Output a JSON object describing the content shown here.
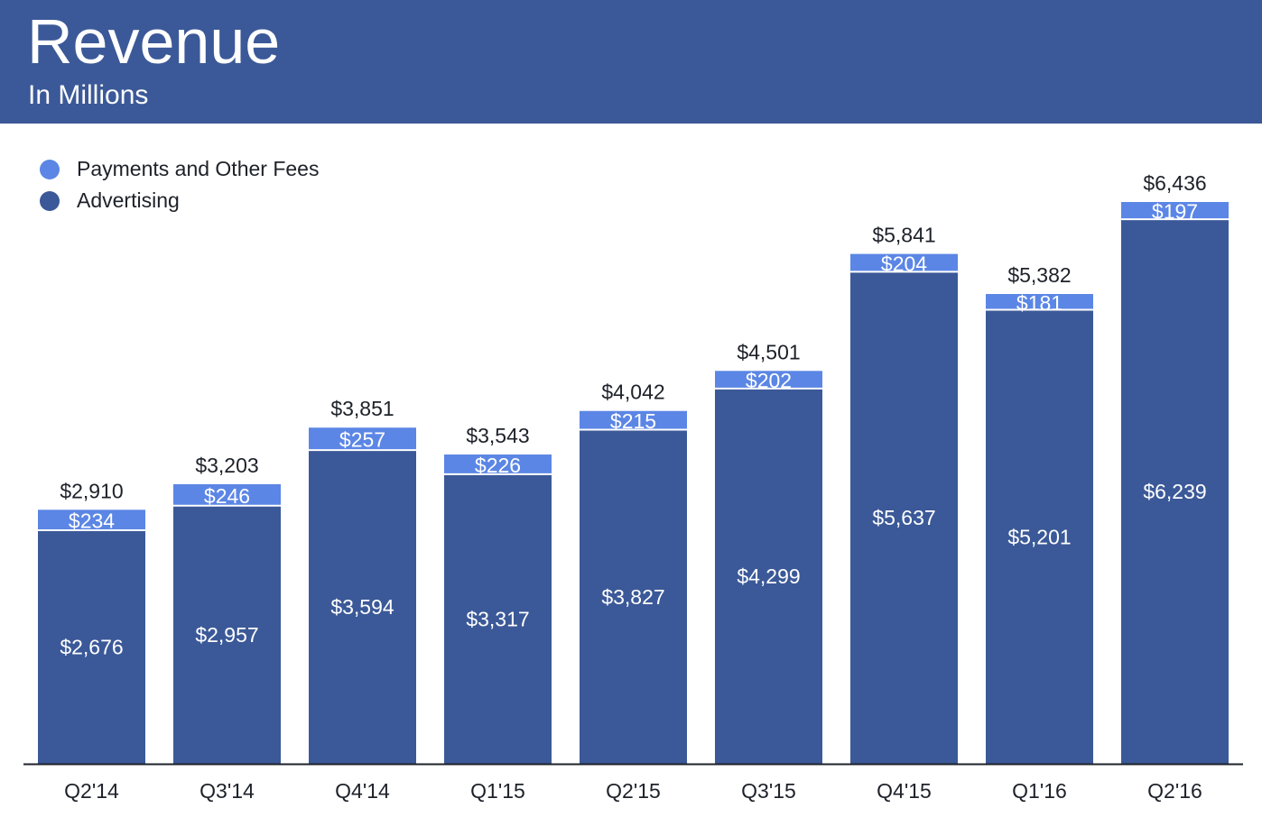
{
  "header": {
    "title": "Revenue",
    "subtitle": "In Millions",
    "background": "#3b5998"
  },
  "legend": [
    {
      "label": "Payments and Other Fees",
      "color": "#5b86e5"
    },
    {
      "label": "Advertising",
      "color": "#3b5998"
    }
  ],
  "chart_data": {
    "type": "bar",
    "stacked": true,
    "categories": [
      "Q2'14",
      "Q3'14",
      "Q4'14",
      "Q1'15",
      "Q2'15",
      "Q3'15",
      "Q4'15",
      "Q1'16",
      "Q2'16"
    ],
    "series": [
      {
        "name": "Advertising",
        "color": "#3b5998",
        "labels": [
          "$2,676",
          "$2,957",
          "$3,594",
          "$3,317",
          "$3,827",
          "$4,299",
          "$5,637",
          "$5,201",
          "$6,239"
        ],
        "values": [
          2676,
          2957,
          3594,
          3317,
          3827,
          4299,
          5637,
          5201,
          6239
        ]
      },
      {
        "name": "Payments and Other Fees",
        "color": "#5b86e5",
        "labels": [
          "$234",
          "$246",
          "$257",
          "$226",
          "$215",
          "$202",
          "$204",
          "$181",
          "$197"
        ],
        "values": [
          234,
          246,
          257,
          226,
          215,
          202,
          204,
          181,
          197
        ]
      }
    ],
    "totals": [
      2910,
      3203,
      3851,
      3543,
      4042,
      4501,
      5841,
      5382,
      6436
    ],
    "total_labels": [
      "$2,910",
      "$3,203",
      "$3,851",
      "$3,543",
      "$4,042",
      "$4,501",
      "$5,841",
      "$5,382",
      "$6,436"
    ],
    "ylim": [
      0,
      6436
    ],
    "grid": false,
    "legend_position": "top-left",
    "xlabel": "",
    "ylabel": ""
  }
}
